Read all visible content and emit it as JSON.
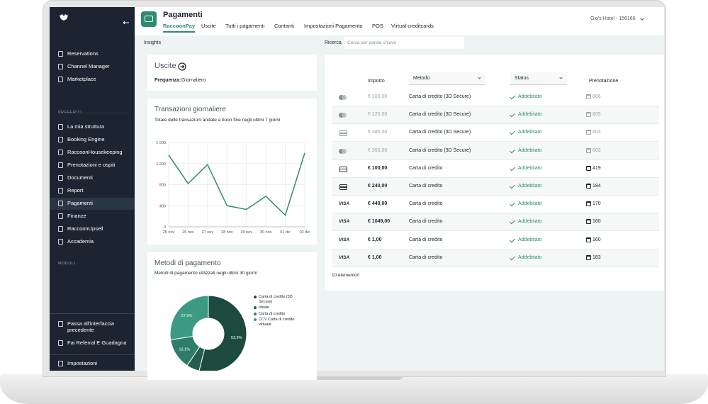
{
  "sidebar": {
    "main": [
      "Reservations",
      "Channel Manager",
      "Marketplace"
    ],
    "favorites_title": "PREFERITI",
    "favorites": [
      "La mia struttura",
      "Booking Engine",
      "RaccoonHousekeeping",
      "Prenotazioni e ospiti",
      "Documenti",
      "Report",
      "Pagamenti",
      "Finanze",
      "RaccoonUpsell",
      "Accademia"
    ],
    "active": "Pagamenti",
    "modules_title": "MODULI",
    "bottom": [
      "Passa all'interfaccia precedente",
      "Fai Referral E Guadagna",
      "Impostazioni"
    ]
  },
  "header": {
    "title": "Pagamenti",
    "tabs": [
      "RaccoonPay",
      "Uscite",
      "Tutti i pagamenti",
      "Contanti",
      "Impostazioni Pagamento",
      "POS",
      "Virtual creditcards"
    ],
    "active_tab": "RaccoonPay",
    "hotel": "Gio's Hotel - 156166"
  },
  "toolbar": {
    "insights": "Insights",
    "search_label": "Ricerca",
    "search_placeholder": "Cerca per parola chiave"
  },
  "uscite": {
    "title": "Uscite",
    "frequency_label": "Frequenza:",
    "frequency": "Giornaliero"
  },
  "line_chart": {
    "type": "line",
    "title": "Transazioni giornaliere",
    "subtitle": "Totale delle transazioni andate a buon fine negli ultimi 7 giorni",
    "categories": [
      "25 nov",
      "26 nov",
      "27 nov",
      "28 nov",
      "29 nov",
      "30 nov",
      "01 dic",
      "02 dic"
    ],
    "values": [
      1360,
      820,
      1180,
      400,
      330,
      580,
      220,
      1400
    ],
    "color": "#2e8b72",
    "ylim": [
      0,
      1600
    ],
    "yticks": [
      0,
      400,
      800,
      {
        "value": 1200,
        "label": "1 200"
      },
      {
        "value": 1600,
        "label": "1 600"
      }
    ],
    "grid": true
  },
  "pie_chart": {
    "type": "pie",
    "title": "Metodi di pagamento",
    "subtitle": "Metodi di pagamento utilizzati negli ultimi 30 giorni",
    "categories": [
      "Carta di credito (3D Secure)",
      "Ideale",
      "Carta di credito",
      "CCV Carta di credito virtuale"
    ],
    "values": [
      53.9,
      5.5,
      13.1,
      27.5
    ],
    "value_labels": [
      "53,9%",
      null,
      "13,1%",
      "27,5%"
    ],
    "colors": [
      "#1c4a3e",
      "#245c4e",
      "#2d7d69",
      "#3c9a84"
    ]
  },
  "table": {
    "columns": [
      "Importo",
      "Metodo",
      "Status",
      "Prenotazione"
    ],
    "rows": [
      {
        "icon": "mastercard",
        "amount": "€ 100,00",
        "method": "Carta di credito (3D Secure)",
        "status": "Addebitato",
        "booking": 606,
        "muted": true
      },
      {
        "icon": "mastercard",
        "amount": "€ 120,00",
        "method": "Carta di credito (3D Secure)",
        "status": "Addebitato",
        "booking": 605,
        "muted": true
      },
      {
        "icon": "card",
        "amount": "€ 385,00",
        "method": "Carta di credito (3D Secure)",
        "status": "Addebitato",
        "booking": 603,
        "muted": true
      },
      {
        "icon": "mastercard",
        "amount": "€ 355,00",
        "method": "Carta di credito (3D Secure)",
        "status": "Addebitato",
        "booking": 603,
        "muted": true
      },
      {
        "icon": "card",
        "amount": "€ 100,00",
        "method": "Carta di credito",
        "status": "Addebitato",
        "booking": 419,
        "muted": false
      },
      {
        "icon": "card",
        "amount": "€ 240,00",
        "method": "Carta di credito",
        "status": "Addebitato",
        "booking": 184,
        "muted": false
      },
      {
        "icon": "VISA",
        "amount": "€ 440,00",
        "method": "Carta di credito",
        "status": "Addebitato",
        "booking": 170,
        "muted": false
      },
      {
        "icon": "VISA",
        "amount": "€ 1049,00",
        "method": "Carta di credito",
        "status": "Addebitato",
        "booking": 160,
        "muted": false
      },
      {
        "icon": "VISA",
        "amount": "€ 1,00",
        "method": "Carta di credito",
        "status": "Addebitato",
        "booking": 160,
        "muted": false
      },
      {
        "icon": "VISA",
        "amount": "€ 1,00",
        "method": "Carta di credito",
        "status": "Addebitato",
        "booking": 183,
        "muted": false
      }
    ],
    "footer": "10 elemento/i"
  }
}
